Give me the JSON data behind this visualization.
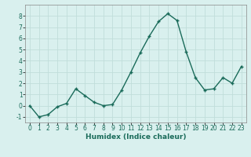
{
  "x": [
    0,
    1,
    2,
    3,
    4,
    5,
    6,
    7,
    8,
    9,
    10,
    11,
    12,
    13,
    14,
    15,
    16,
    17,
    18,
    19,
    20,
    21,
    22,
    23
  ],
  "y": [
    0,
    -1,
    -0.8,
    -0.1,
    0.2,
    1.5,
    0.9,
    0.3,
    0.0,
    0.1,
    1.4,
    3.0,
    4.7,
    6.2,
    7.5,
    8.2,
    7.6,
    4.8,
    2.5,
    1.4,
    1.5,
    2.5,
    2.0,
    3.5
  ],
  "line_color": "#1a6b5a",
  "marker": "+",
  "markersize": 3.5,
  "linewidth": 1.0,
  "xlabel": "Humidex (Indice chaleur)",
  "xlim": [
    -0.5,
    23.5
  ],
  "ylim": [
    -1.5,
    9.0
  ],
  "yticks": [
    -1,
    0,
    1,
    2,
    3,
    4,
    5,
    6,
    7,
    8
  ],
  "xticks": [
    0,
    1,
    2,
    3,
    4,
    5,
    6,
    7,
    8,
    9,
    10,
    11,
    12,
    13,
    14,
    15,
    16,
    17,
    18,
    19,
    20,
    21,
    22,
    23
  ],
  "background_color": "#d9f0ee",
  "grid_color": "#c0deda",
  "xlabel_fontsize": 6.5,
  "tick_fontsize": 5.5
}
